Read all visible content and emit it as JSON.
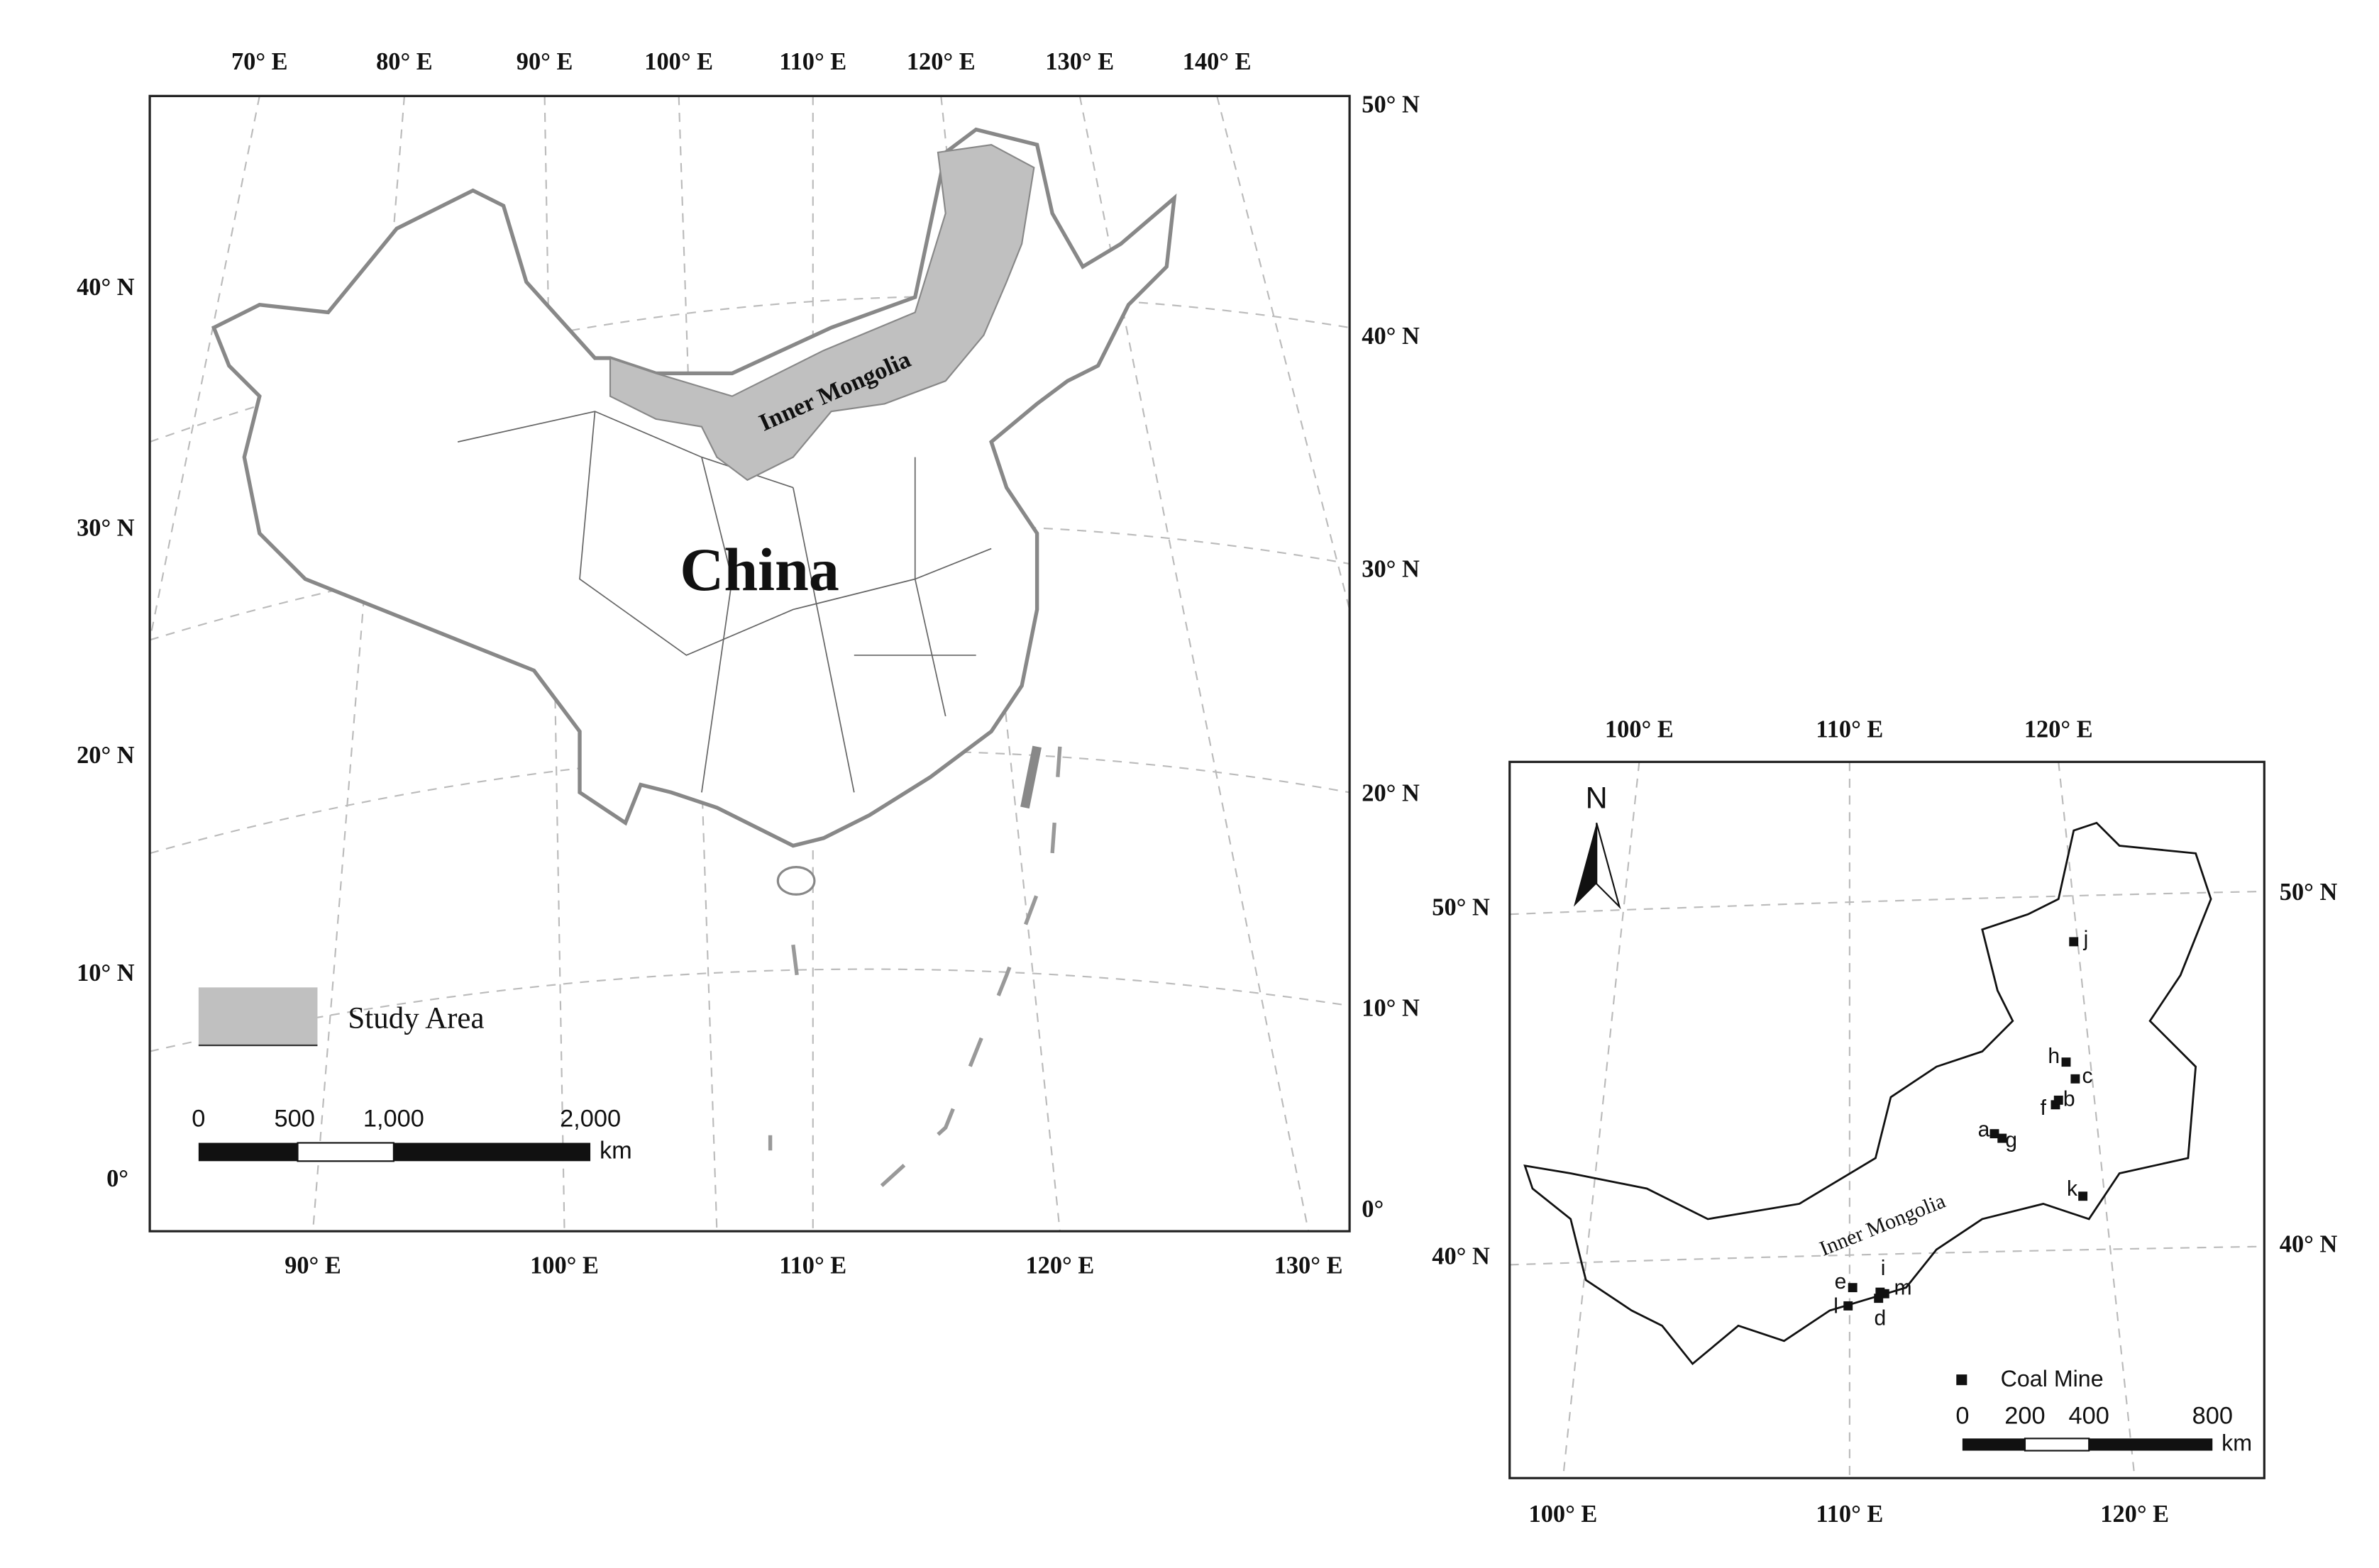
{
  "main_map": {
    "top_labels": [
      "70° E",
      "80° E",
      "90° E",
      "100° E",
      "110° E",
      "120° E",
      "130° E",
      "140° E"
    ],
    "bottom_labels": [
      "90° E",
      "100° E",
      "110° E",
      "120° E",
      "130° E"
    ],
    "left_labels": [
      "40° N",
      "30° N",
      "20° N",
      "10° N",
      "0°"
    ],
    "right_labels": [
      "50° N",
      "40° N",
      "30° N",
      "20° N",
      "10° N",
      "0°"
    ],
    "region_label": "Inner Mongolia",
    "country_label": "China",
    "legend": {
      "label": "Study Area"
    },
    "scale_bar": {
      "ticks": [
        "0",
        "500",
        "1,000",
        "2,000"
      ],
      "unit": "km"
    }
  },
  "inset_map": {
    "top_labels": [
      "100° E",
      "110° E",
      "120° E"
    ],
    "bottom_labels": [
      "100° E",
      "110° E",
      "120° E"
    ],
    "left_labels": [
      "50° N",
      "40° N"
    ],
    "right_labels": [
      "50° N",
      "40° N"
    ],
    "north_label": "N",
    "region_label": "Inner Mongolia",
    "mines": [
      "j",
      "h",
      "c",
      "f",
      "b",
      "a",
      "g",
      "k",
      "e",
      "i",
      "l",
      "m",
      "d"
    ],
    "legend": {
      "label": "Coal Mine"
    },
    "scale_bar": {
      "ticks": [
        "0",
        "200",
        "400",
        "800"
      ],
      "unit": "km"
    }
  }
}
